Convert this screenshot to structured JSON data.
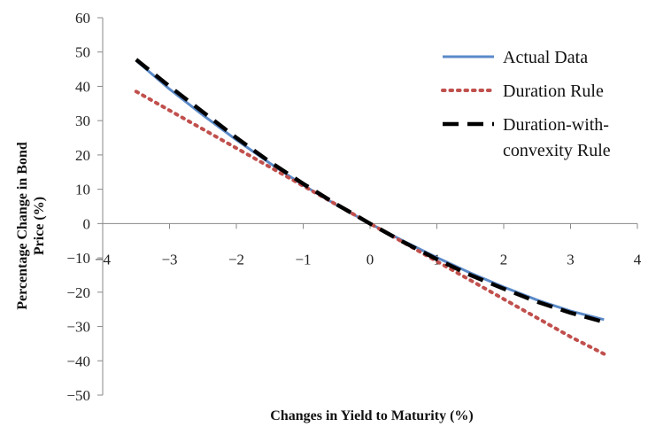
{
  "chart_data": {
    "type": "line",
    "title": "",
    "xlabel": "Changes in Yield to Maturity (%)",
    "ylabel": "Percentage Change in Bond Price (%)",
    "ylabel_lines": [
      "Percentage Change in Bond",
      "Price (%)"
    ],
    "xlim": [
      -4,
      4
    ],
    "ylim": [
      -50,
      60
    ],
    "x_ticks": [
      -4,
      -3,
      -2,
      -1,
      0,
      1,
      2,
      3,
      4
    ],
    "y_ticks": [
      -50,
      -40,
      -30,
      -20,
      -10,
      0,
      10,
      20,
      30,
      40,
      50,
      60
    ],
    "x_tick_labels": [
      "−4",
      "−3",
      "−2",
      "−1",
      "0",
      "1",
      "2",
      "3",
      "4"
    ],
    "y_tick_labels": [
      "−50",
      "−40",
      "−30",
      "−20",
      "−10",
      "0",
      "10",
      "20",
      "30",
      "40",
      "50",
      "60"
    ],
    "grid": false,
    "legend_position": "top-right",
    "x": [
      -3.5,
      -3,
      -2.5,
      -2,
      -1.5,
      -1,
      -0.5,
      0,
      0.5,
      1,
      1.5,
      2,
      2.5,
      3,
      3.5
    ],
    "series": [
      {
        "name": "Actual Data",
        "color": "#5b8ac8",
        "style": "solid",
        "values": [
          47.5,
          39.2,
          31.6,
          24.4,
          17.6,
          11.2,
          5.4,
          0,
          -5.1,
          -9.9,
          -14.4,
          -18.5,
          -22.3,
          -25.5,
          -28.0
        ]
      },
      {
        "name": "Duration Rule",
        "color": "#c0504d",
        "style": "dotted",
        "values": [
          38.5,
          33.0,
          27.5,
          22.0,
          16.5,
          11.0,
          5.5,
          0,
          -5.5,
          -11.0,
          -16.5,
          -22.0,
          -27.5,
          -33.0,
          -38.0
        ]
      },
      {
        "name": "Duration-with-convexity Rule",
        "color": "#000000",
        "style": "dashed",
        "values": [
          47.8,
          40.0,
          32.5,
          25.0,
          18.0,
          11.6,
          5.6,
          0,
          -5.4,
          -10.4,
          -15.0,
          -19.0,
          -22.8,
          -26.0,
          -28.7
        ]
      }
    ]
  }
}
